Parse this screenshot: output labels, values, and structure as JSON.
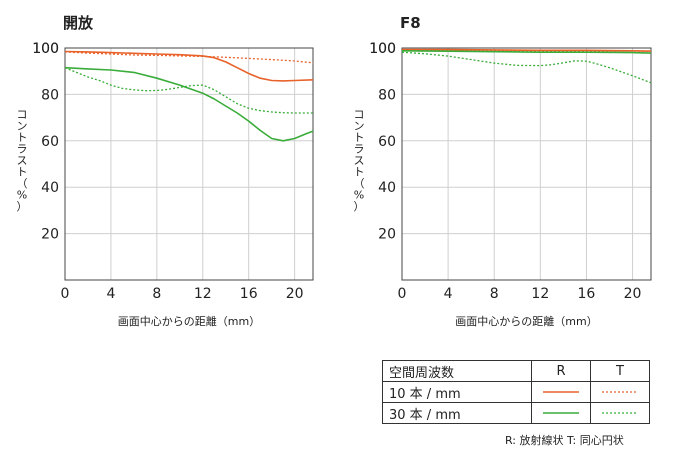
{
  "chart_data": [
    {
      "type": "line",
      "title": "開放",
      "xlabel": "画面中心からの距離（mm）",
      "ylabel": "コントラスト（%）",
      "xlim": [
        0,
        21.6
      ],
      "ylim": [
        0,
        100
      ],
      "xticks": [
        0,
        4,
        8,
        12,
        16,
        20
      ],
      "yticks": [
        20,
        40,
        60,
        80,
        100
      ],
      "grid": true,
      "series": [
        {
          "key": "10R",
          "color": "#e8622a",
          "dash": false,
          "points": [
            [
              0,
              98.5
            ],
            [
              2,
              98.3
            ],
            [
              4,
              98
            ],
            [
              6,
              97.7
            ],
            [
              8,
              97.4
            ],
            [
              10,
              97.1
            ],
            [
              12,
              96.6
            ],
            [
              13,
              95.8
            ],
            [
              14,
              94
            ],
            [
              15,
              91.5
            ],
            [
              16,
              89
            ],
            [
              17,
              87
            ],
            [
              18,
              86
            ],
            [
              19,
              85.8
            ],
            [
              20,
              86
            ],
            [
              21.6,
              86.3
            ]
          ]
        },
        {
          "key": "10T",
          "color": "#e8622a",
          "dash": true,
          "points": [
            [
              0,
              98.3
            ],
            [
              2,
              97.8
            ],
            [
              4,
              97.4
            ],
            [
              6,
              97
            ],
            [
              8,
              96.8
            ],
            [
              10,
              96.6
            ],
            [
              12,
              96.4
            ],
            [
              14,
              96
            ],
            [
              16,
              95.5
            ],
            [
              18,
              95
            ],
            [
              20,
              94.4
            ],
            [
              21.6,
              93.6
            ]
          ]
        },
        {
          "key": "30R",
          "color": "#3aac3a",
          "dash": false,
          "points": [
            [
              0,
              91.5
            ],
            [
              2,
              91
            ],
            [
              4,
              90.5
            ],
            [
              6,
              89.5
            ],
            [
              8,
              87
            ],
            [
              10,
              84
            ],
            [
              12,
              80.5
            ],
            [
              13,
              78
            ],
            [
              14,
              75
            ],
            [
              15,
              72
            ],
            [
              16,
              68.5
            ],
            [
              17,
              64.5
            ],
            [
              18,
              61
            ],
            [
              19,
              60
            ],
            [
              20,
              61
            ],
            [
              21,
              63
            ],
            [
              21.6,
              64.2
            ]
          ]
        },
        {
          "key": "30T",
          "color": "#3aac3a",
          "dash": true,
          "points": [
            [
              0,
              91.5
            ],
            [
              1,
              89.5
            ],
            [
              2,
              87.5
            ],
            [
              3,
              86
            ],
            [
              4,
              84
            ],
            [
              5,
              82.6
            ],
            [
              6,
              82
            ],
            [
              7,
              81.6
            ],
            [
              8,
              81.7
            ],
            [
              9,
              82.2
            ],
            [
              10,
              83
            ],
            [
              11,
              83.8
            ],
            [
              12,
              84
            ],
            [
              13,
              82
            ],
            [
              14,
              79
            ],
            [
              15,
              76
            ],
            [
              16,
              74
            ],
            [
              17,
              73
            ],
            [
              18,
              72.4
            ],
            [
              19,
              72.1
            ],
            [
              20,
              72
            ],
            [
              21.6,
              72
            ]
          ]
        }
      ]
    },
    {
      "type": "line",
      "title": "F8",
      "xlabel": "画面中心からの距離（mm）",
      "ylabel": "コントラスト（%）",
      "xlim": [
        0,
        21.6
      ],
      "ylim": [
        0,
        100
      ],
      "xticks": [
        0,
        4,
        8,
        12,
        16,
        20
      ],
      "yticks": [
        20,
        40,
        60,
        80,
        100
      ],
      "grid": true,
      "series": [
        {
          "key": "10R",
          "color": "#e8622a",
          "dash": false,
          "points": [
            [
              0,
              99.3
            ],
            [
              4,
              99.3
            ],
            [
              8,
              99.2
            ],
            [
              12,
              99
            ],
            [
              16,
              99
            ],
            [
              20,
              98.8
            ],
            [
              21.6,
              98.6
            ]
          ]
        },
        {
          "key": "10T",
          "color": "#e8622a",
          "dash": true,
          "points": [
            [
              0,
              99.2
            ],
            [
              4,
              99
            ],
            [
              8,
              98.8
            ],
            [
              12,
              98.7
            ],
            [
              16,
              98.8
            ],
            [
              20,
              98.7
            ],
            [
              21.6,
              98.6
            ]
          ]
        },
        {
          "key": "30R",
          "color": "#3aac3a",
          "dash": false,
          "points": [
            [
              0,
              98.8
            ],
            [
              4,
              98.6
            ],
            [
              8,
              98.4
            ],
            [
              12,
              98.2
            ],
            [
              16,
              98.2
            ],
            [
              20,
              98
            ],
            [
              21.6,
              97.8
            ]
          ]
        },
        {
          "key": "30T",
          "color": "#3aac3a",
          "dash": true,
          "points": [
            [
              0,
              98.2
            ],
            [
              2,
              97.5
            ],
            [
              4,
              96.5
            ],
            [
              6,
              95
            ],
            [
              8,
              93.5
            ],
            [
              10,
              92.5
            ],
            [
              12,
              92.4
            ],
            [
              13,
              92.8
            ],
            [
              14,
              93.6
            ],
            [
              15,
              94.5
            ],
            [
              16,
              94.3
            ],
            [
              17,
              93
            ],
            [
              18,
              91.5
            ],
            [
              19,
              89.8
            ],
            [
              20,
              88
            ],
            [
              21.6,
              85
            ]
          ]
        }
      ]
    }
  ],
  "legend": {
    "header": {
      "label": "空間周波数",
      "r": "R",
      "t": "T"
    },
    "rows": [
      {
        "label": "10 本 / mm"
      },
      {
        "label": "30 本 / mm"
      }
    ]
  },
  "note": "R: 放射線状  T: 同心円状"
}
